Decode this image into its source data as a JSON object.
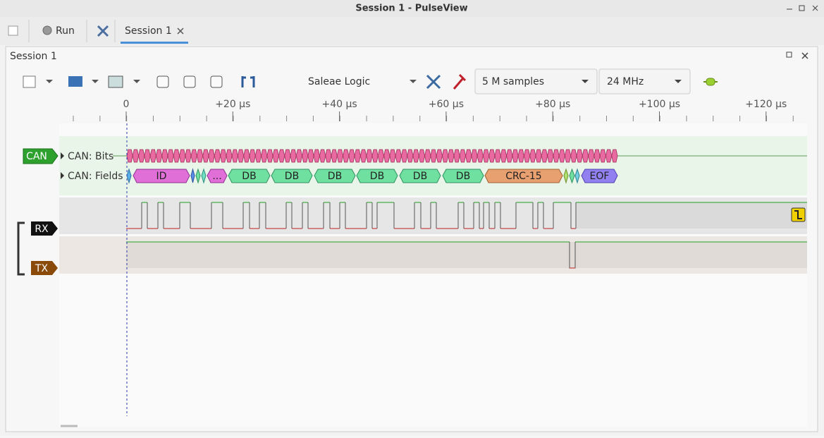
{
  "window": {
    "title": "Session 1 - PulseView"
  },
  "tabs": {
    "run": "Run",
    "session": "Session 1"
  },
  "panel": {
    "title": "Session 1"
  },
  "toolbar": {
    "device": "Saleae Logic",
    "samples": "5 M samples",
    "samplerate": "24 MHz"
  },
  "ruler": {
    "labels": [
      "0",
      "+20 µs",
      "+40 µs",
      "+60 µs",
      "+80 µs",
      "+100 µs",
      "+120 µs"
    ]
  },
  "traces": {
    "decoder": "CAN",
    "rows": [
      "CAN: Bits",
      "CAN: Fields"
    ],
    "fields": [
      "ID",
      "...",
      "DB",
      "DB",
      "DB",
      "DB",
      "DB",
      "DB",
      "CRC-15",
      "EOF"
    ],
    "channels": [
      "RX",
      "TX"
    ]
  }
}
